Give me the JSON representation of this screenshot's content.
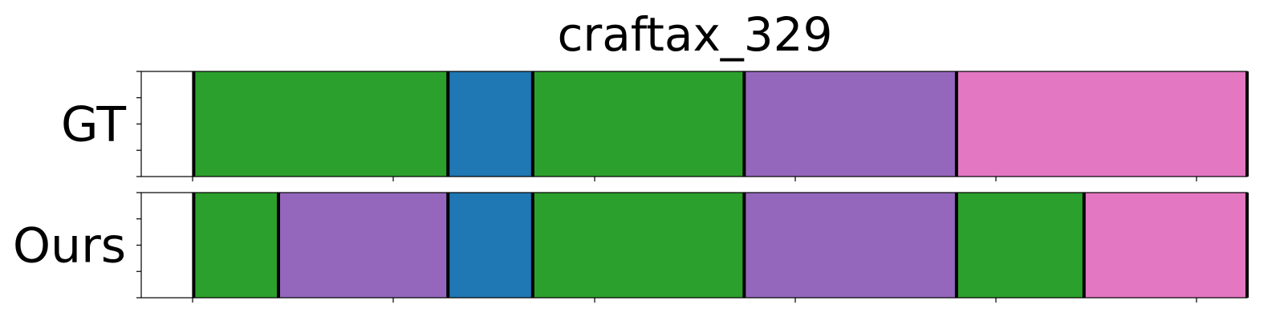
{
  "chart_data": {
    "type": "bar",
    "title": "craftax_329",
    "xlabel": "",
    "ylabel": "",
    "xlim": [
      0,
      137
    ],
    "grid": false,
    "legend": "none",
    "boundary_color": "#000000",
    "rows": [
      {
        "label": "GT",
        "segments": [
          {
            "start": 6.5,
            "end": 38,
            "color": "#2ca02c"
          },
          {
            "start": 38,
            "end": 48.5,
            "color": "#1f77b4"
          },
          {
            "start": 48.5,
            "end": 74.7,
            "color": "#2ca02c"
          },
          {
            "start": 74.7,
            "end": 101,
            "color": "#9467bd"
          },
          {
            "start": 101,
            "end": 137,
            "color": "#e377c2"
          }
        ]
      },
      {
        "label": "Ours",
        "segments": [
          {
            "start": 6.5,
            "end": 17,
            "color": "#2ca02c"
          },
          {
            "start": 17,
            "end": 38,
            "color": "#9467bd"
          },
          {
            "start": 38,
            "end": 48.5,
            "color": "#1f77b4"
          },
          {
            "start": 48.5,
            "end": 74.7,
            "color": "#2ca02c"
          },
          {
            "start": 74.7,
            "end": 101,
            "color": "#9467bd"
          },
          {
            "start": 101,
            "end": 116.8,
            "color": "#2ca02c"
          },
          {
            "start": 116.8,
            "end": 137,
            "color": "#e377c2"
          }
        ]
      }
    ]
  }
}
